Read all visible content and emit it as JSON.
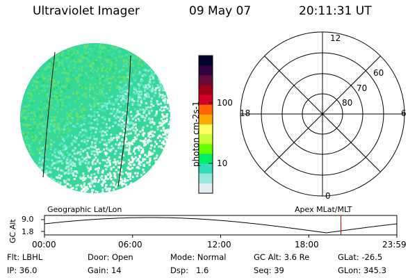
{
  "header": {
    "instrument": "Ultraviolet Imager",
    "date": "09 May 07",
    "time": "20:11:31 UT"
  },
  "colorbar": {
    "unit_label": "photon cm-2s-1",
    "tick_labels": [
      "100",
      "10"
    ],
    "colors": [
      "#000033",
      "#330044",
      "#6a0a3a",
      "#a0001a",
      "#d4002a",
      "#ff6600",
      "#ffaa00",
      "#ffff66",
      "#ccff33",
      "#66ff00",
      "#00ee66",
      "#33ddbb",
      "#99e8e0",
      "#e0f0f0"
    ]
  },
  "polar_plot": {
    "mlt_labels": {
      "top": "12",
      "left": "18",
      "right": "6",
      "bottom": "0"
    },
    "lat_labels": [
      "60",
      "70",
      "80"
    ]
  },
  "timeline": {
    "title_left": "Geographic Lat/Lon",
    "title_right": "Apex MLat/MLT",
    "y_axis_label": "GC Alt",
    "y_ticks": [
      "9.0",
      "1.8"
    ],
    "x_ticks": [
      "00:00",
      "06:00",
      "12:00",
      "18:00",
      "23:59"
    ],
    "current_time_hours": 20.19,
    "current_marker_color": "#cc0000"
  },
  "info": {
    "filter": "Flt: LBHL",
    "ip": "IP: 36.0",
    "door": "Door: Open",
    "gain": "Gain: 14",
    "mode": "Mode: Normal",
    "dsp": "Dsp:   1.6",
    "gc_alt": "GC Alt: 3.6 Re",
    "seq": "Seq: 39",
    "glat": "GLat: -26.5",
    "glon": "GLon: 345.3"
  }
}
